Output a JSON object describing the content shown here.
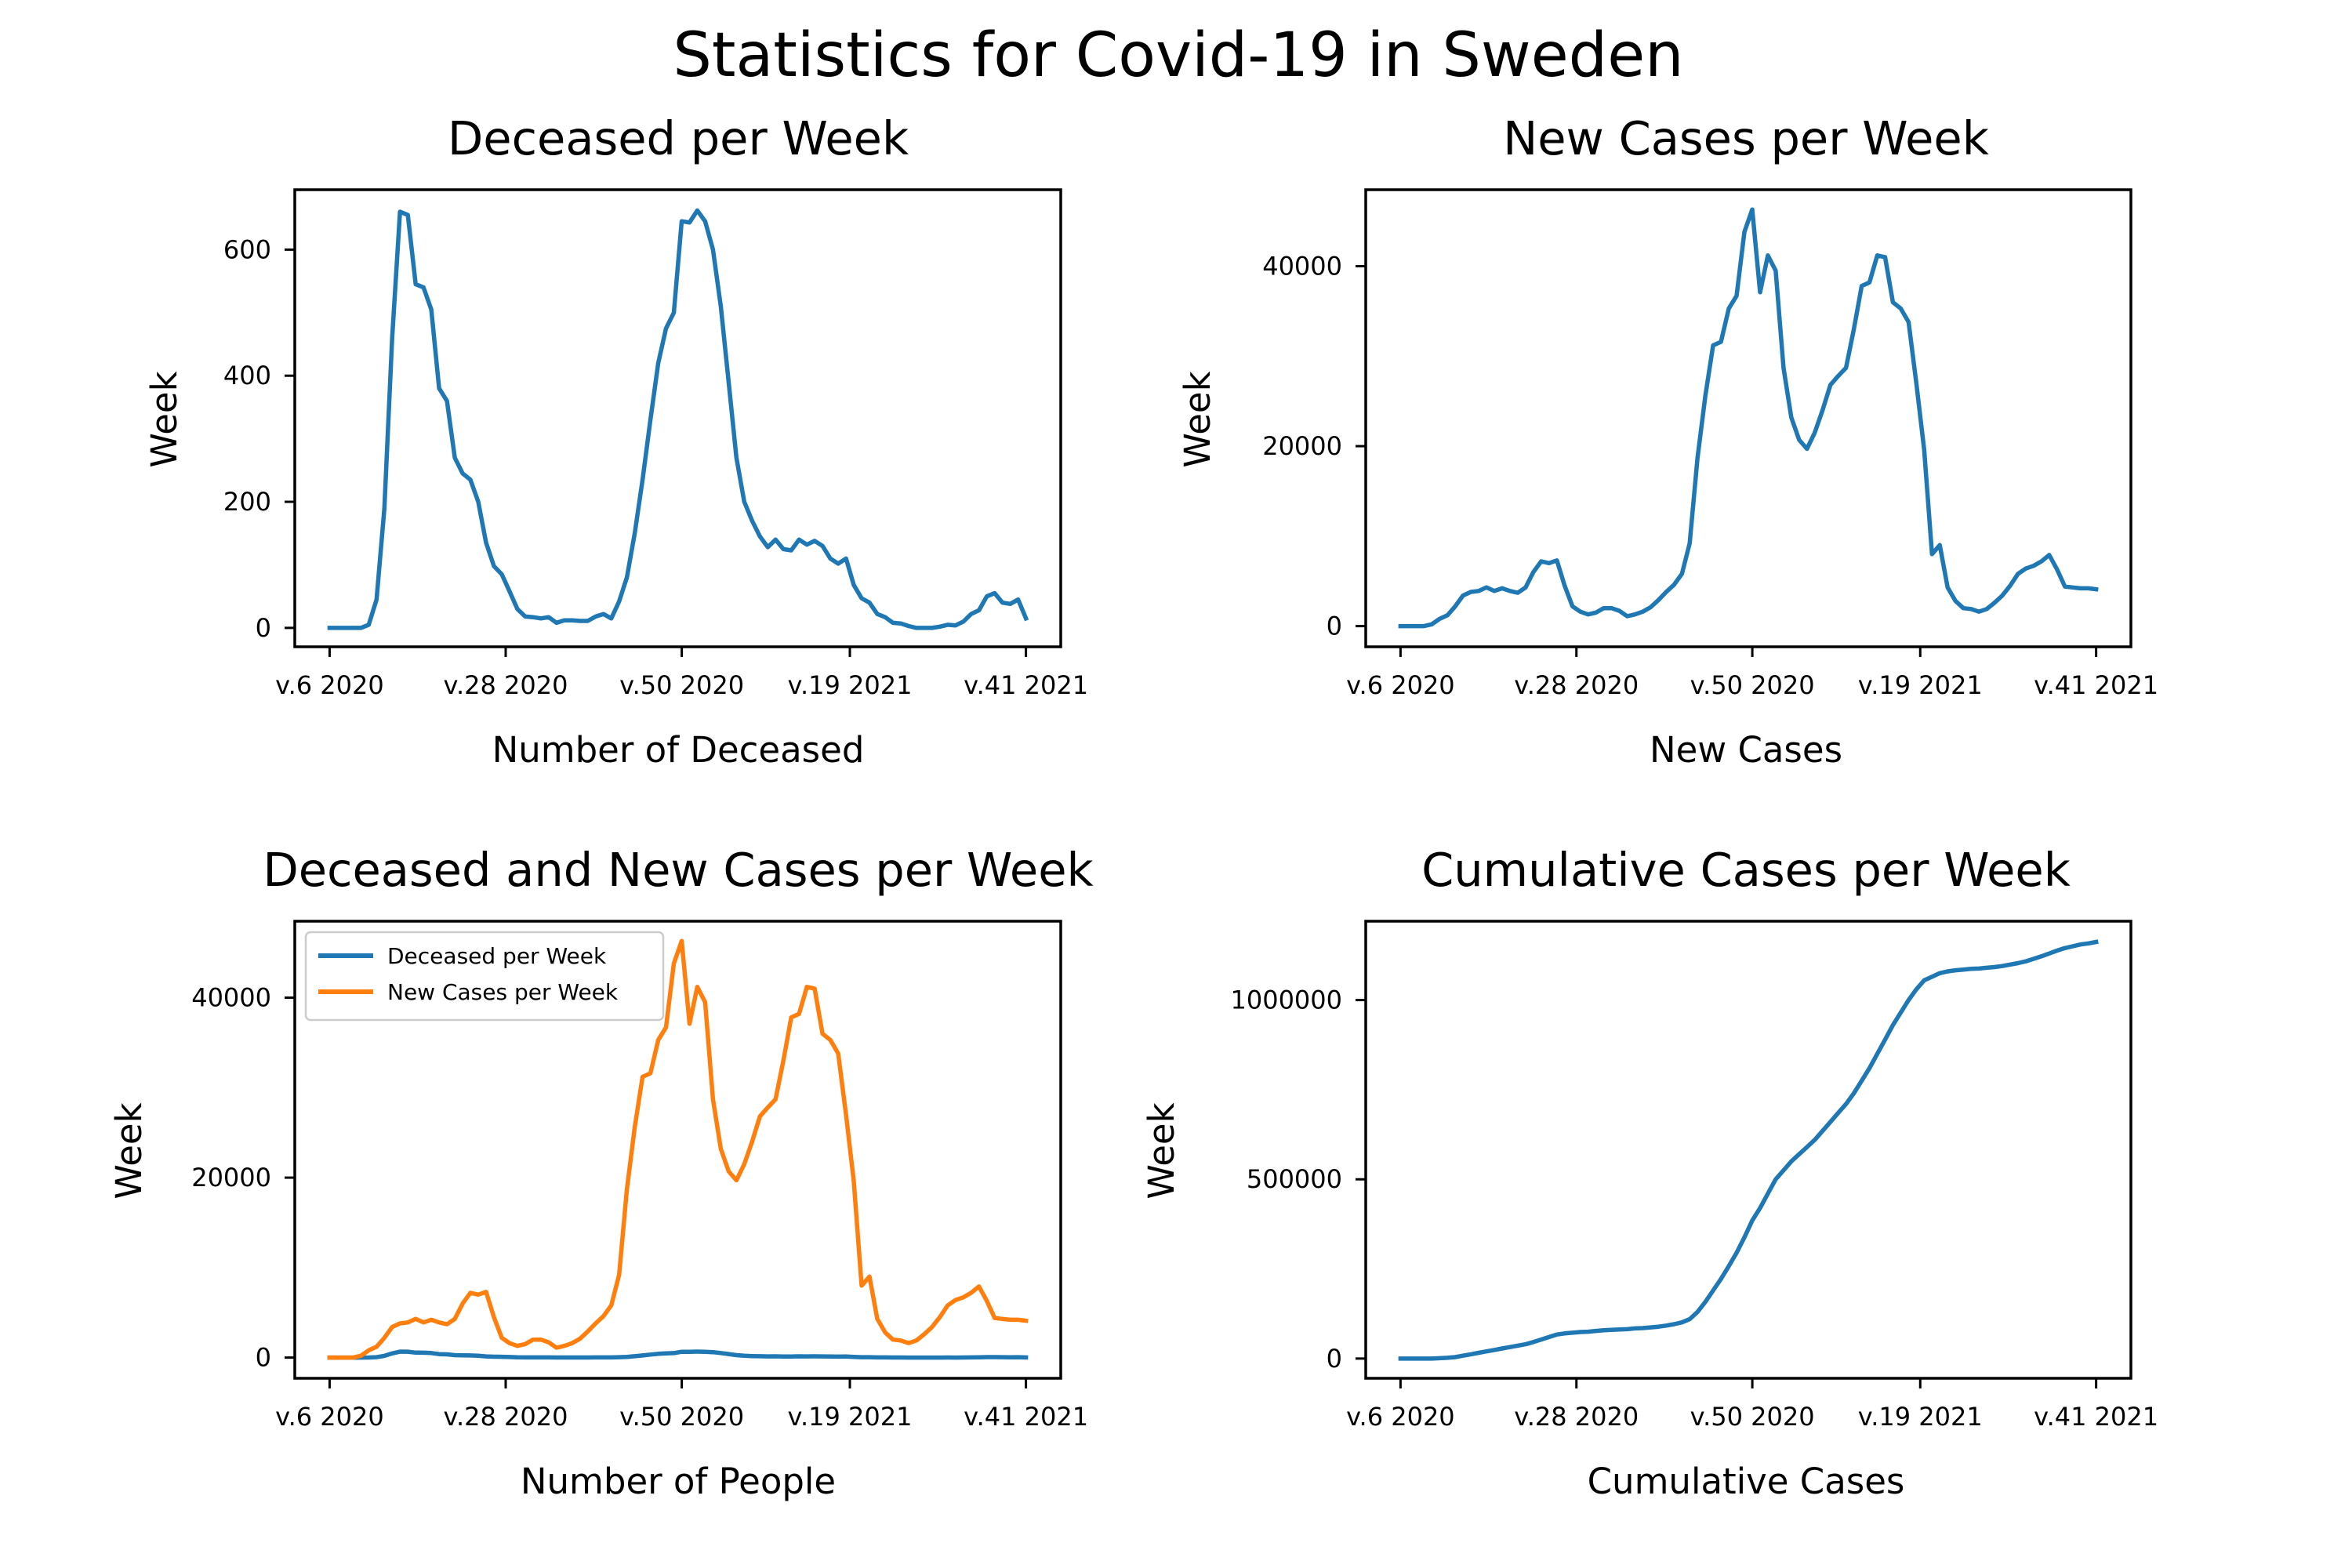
{
  "figure": {
    "title": "Statistics for Covid-19 in Sweden"
  },
  "colors": {
    "deceased": "#1f77b4",
    "new_cases": "#ff7f0e",
    "cumulative": "#1f77b4"
  },
  "chart_data": [
    {
      "id": "deceased",
      "type": "line",
      "title": "Deceased per Week",
      "xlabel": "Number of Deceased",
      "ylabel": "Week",
      "xticks": [
        "v.6 2020",
        "v.28 2020",
        "v.50 2020",
        "v.19 2021",
        "v.41 2021"
      ],
      "xtick_weeks": [
        6,
        28,
        50,
        71,
        93
      ],
      "yticks": [
        0,
        200,
        400,
        600
      ],
      "ylim": [
        -30,
        695
      ],
      "grid": false,
      "series": [
        {
          "color": "#1f77b4",
          "x_start_week": "v.6 2020",
          "values": [
            0,
            0,
            0,
            0,
            0,
            5,
            45,
            190,
            460,
            660,
            655,
            545,
            540,
            505,
            380,
            360,
            270,
            245,
            235,
            200,
            135,
            98,
            85,
            58,
            30,
            18,
            17,
            15,
            17,
            8,
            12,
            12,
            11,
            11,
            18,
            22,
            15,
            42,
            80,
            150,
            235,
            330,
            420,
            475,
            500,
            645,
            643,
            662,
            645,
            600,
            510,
            390,
            270,
            200,
            170,
            145,
            128,
            140,
            125,
            123,
            140,
            132,
            138,
            130,
            110,
            102,
            110,
            68,
            47,
            40,
            22,
            17,
            8,
            7,
            3,
            0,
            0,
            0,
            2,
            5,
            4,
            10,
            22,
            28,
            50,
            55,
            40,
            38,
            45,
            15
          ]
        }
      ]
    },
    {
      "id": "new_cases",
      "type": "line",
      "title": "New Cases per Week",
      "xlabel": "New Cases",
      "ylabel": "Week",
      "xticks": [
        "v.6 2020",
        "v.28 2020",
        "v.50 2020",
        "v.19 2021",
        "v.41 2021"
      ],
      "xtick_weeks": [
        6,
        28,
        50,
        71,
        93
      ],
      "yticks": [
        0,
        20000,
        40000
      ],
      "ylim": [
        -2300,
        48500
      ],
      "grid": false,
      "series": [
        {
          "color": "#1f77b4",
          "x_start_week": "v.6 2020",
          "values": [
            0,
            0,
            0,
            0,
            200,
            800,
            1200,
            2200,
            3400,
            3800,
            3900,
            4300,
            3900,
            4200,
            3900,
            3700,
            4300,
            6000,
            7200,
            7000,
            7300,
            4500,
            2200,
            1600,
            1300,
            1500,
            2000,
            2000,
            1700,
            1100,
            1300,
            1600,
            2100,
            2900,
            3800,
            4600,
            5800,
            9200,
            18700,
            25600,
            31200,
            31600,
            35300,
            36700,
            43800,
            46300,
            37100,
            41200,
            39500,
            28700,
            23200,
            20700,
            19700,
            21500,
            24000,
            26800,
            27800,
            28700,
            33000,
            37800,
            38200,
            41200,
            41000,
            36000,
            35300,
            33800,
            27000,
            19600,
            8000,
            9000,
            4300,
            2800,
            2000,
            1900,
            1600,
            1900,
            2600,
            3400,
            4500,
            5800,
            6400,
            6700,
            7200,
            7900,
            6300,
            4400,
            4300,
            4200,
            4200,
            4100
          ]
        }
      ]
    },
    {
      "id": "combined",
      "type": "line",
      "title": "Deceased and New Cases per Week",
      "xlabel": "Number of People",
      "ylabel": "Week",
      "xticks": [
        "v.6 2020",
        "v.28 2020",
        "v.50 2020",
        "v.19 2021",
        "v.41 2021"
      ],
      "xtick_weeks": [
        6,
        28,
        50,
        71,
        93
      ],
      "yticks": [
        0,
        20000,
        40000
      ],
      "ylim": [
        -2300,
        48500
      ],
      "grid": false,
      "legend": "top-left",
      "series": [
        {
          "name": "Deceased per Week",
          "color": "#1f77b4",
          "x_start_week": "v.6 2020",
          "values": [
            0,
            0,
            0,
            0,
            0,
            5,
            45,
            190,
            460,
            660,
            655,
            545,
            540,
            505,
            380,
            360,
            270,
            245,
            235,
            200,
            135,
            98,
            85,
            58,
            30,
            18,
            17,
            15,
            17,
            8,
            12,
            12,
            11,
            11,
            18,
            22,
            15,
            42,
            80,
            150,
            235,
            330,
            420,
            475,
            500,
            645,
            643,
            662,
            645,
            600,
            510,
            390,
            270,
            200,
            170,
            145,
            128,
            140,
            125,
            123,
            140,
            132,
            138,
            130,
            110,
            102,
            110,
            68,
            47,
            40,
            22,
            17,
            8,
            7,
            3,
            0,
            0,
            0,
            2,
            5,
            4,
            10,
            22,
            28,
            50,
            55,
            40,
            38,
            45,
            15
          ]
        },
        {
          "name": "New Cases per Week",
          "color": "#ff7f0e",
          "x_start_week": "v.6 2020",
          "values": [
            0,
            0,
            0,
            0,
            200,
            800,
            1200,
            2200,
            3400,
            3800,
            3900,
            4300,
            3900,
            4200,
            3900,
            3700,
            4300,
            6000,
            7200,
            7000,
            7300,
            4500,
            2200,
            1600,
            1300,
            1500,
            2000,
            2000,
            1700,
            1100,
            1300,
            1600,
            2100,
            2900,
            3800,
            4600,
            5800,
            9200,
            18700,
            25600,
            31200,
            31600,
            35300,
            36700,
            43800,
            46300,
            37100,
            41200,
            39500,
            28700,
            23200,
            20700,
            19700,
            21500,
            24000,
            26800,
            27800,
            28700,
            33000,
            37800,
            38200,
            41200,
            41000,
            36000,
            35300,
            33800,
            27000,
            19600,
            8000,
            9000,
            4300,
            2800,
            2000,
            1900,
            1600,
            1900,
            2600,
            3400,
            4500,
            5800,
            6400,
            6700,
            7200,
            7900,
            6300,
            4400,
            4300,
            4200,
            4200,
            4100
          ]
        }
      ]
    },
    {
      "id": "cumulative",
      "type": "line",
      "title": "Cumulative Cases per Week",
      "xlabel": "Cumulative Cases",
      "ylabel": "Week",
      "xticks": [
        "v.6 2020",
        "v.28 2020",
        "v.50 2020",
        "v.19 2021",
        "v.41 2021"
      ],
      "xtick_weeks": [
        6,
        28,
        50,
        71,
        93
      ],
      "yticks": [
        0,
        500000,
        1000000
      ],
      "ylim": [
        -55000,
        1220000
      ],
      "grid": false,
      "series": [
        {
          "color": "#1f77b4",
          "x_start_week": "v.6 2020",
          "values": [
            0,
            0,
            0,
            0,
            0,
            1000,
            2000,
            4000,
            8000,
            12000,
            16000,
            20000,
            24000,
            28000,
            32000,
            36000,
            40000,
            46000,
            53000,
            60000,
            67000,
            70000,
            72000,
            74000,
            75000,
            77000,
            79000,
            80000,
            81000,
            82000,
            84000,
            85000,
            87000,
            89000,
            92000,
            96000,
            101000,
            110000,
            130000,
            158000,
            190000,
            222000,
            258000,
            295000,
            338000,
            385000,
            420000,
            460000,
            500000,
            525000,
            550000,
            570000,
            590000,
            610000,
            635000,
            660000,
            685000,
            710000,
            740000,
            775000,
            810000,
            850000,
            890000,
            930000,
            965000,
            1000000,
            1030000,
            1055000,
            1065000,
            1075000,
            1080000,
            1083000,
            1085000,
            1087000,
            1088000,
            1090000,
            1092000,
            1095000,
            1099000,
            1103000,
            1108000,
            1115000,
            1122000,
            1130000,
            1138000,
            1145000,
            1150000,
            1155000,
            1158000,
            1162000
          ]
        }
      ]
    }
  ]
}
